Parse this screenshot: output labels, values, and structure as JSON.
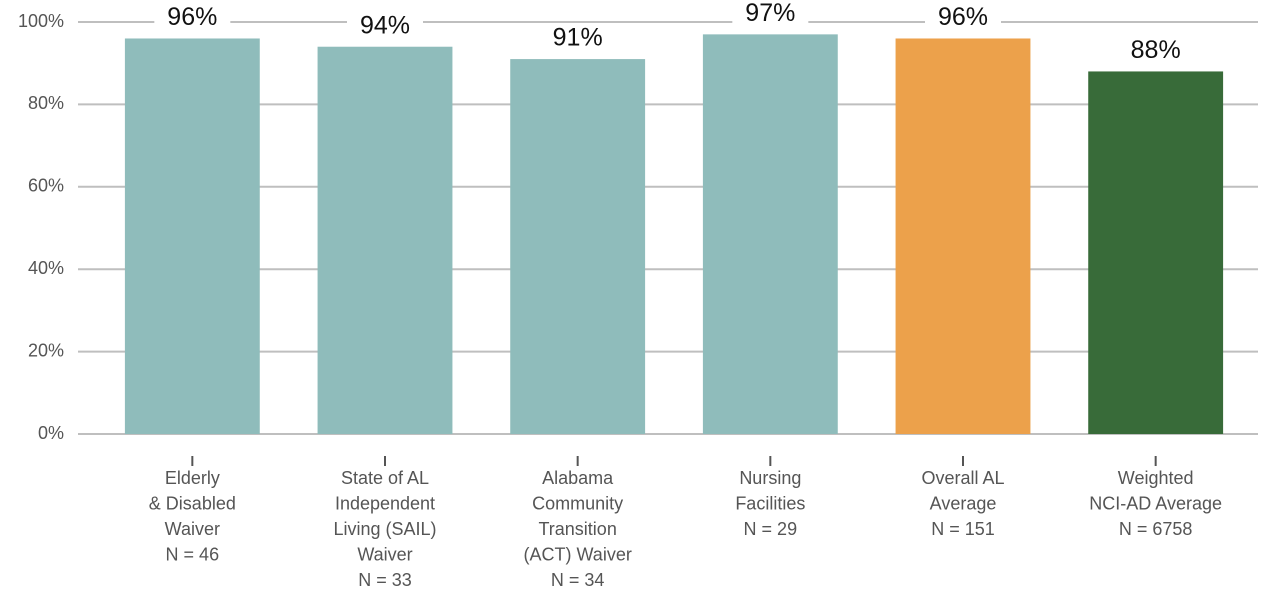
{
  "chart_data": {
    "type": "bar",
    "categories": [
      [
        "Elderly",
        "& Disabled",
        "Waiver",
        "N = 46"
      ],
      [
        "State of AL",
        "Independent",
        "Living (SAIL)",
        "Waiver",
        "N = 33"
      ],
      [
        "Alabama",
        "Community",
        "Transition",
        "(ACT) Waiver",
        "N = 34"
      ],
      [
        "Nursing",
        "Facilities",
        "N = 29"
      ],
      [
        "Overall AL",
        "Average",
        "N = 151"
      ],
      [
        "Weighted",
        "NCI-AD Average",
        "N = 6758"
      ]
    ],
    "values": [
      96,
      94,
      91,
      97,
      96,
      88
    ],
    "value_labels": [
      "96%",
      "94%",
      "91%",
      "97%",
      "96%",
      "88%"
    ],
    "colors": [
      "#8fbcbb",
      "#8fbcbb",
      "#8fbcbb",
      "#8fbcbb",
      "#eca14b",
      "#386b39"
    ],
    "ylim": [
      0,
      100
    ],
    "yticks": [
      {
        "value": 0,
        "label": "0%"
      },
      {
        "value": 20,
        "label": "20%"
      },
      {
        "value": 40,
        "label": "40%"
      },
      {
        "value": 60,
        "label": "60%"
      },
      {
        "value": 80,
        "label": "80%"
      },
      {
        "value": 100,
        "label": "100%"
      }
    ],
    "grid": true
  }
}
